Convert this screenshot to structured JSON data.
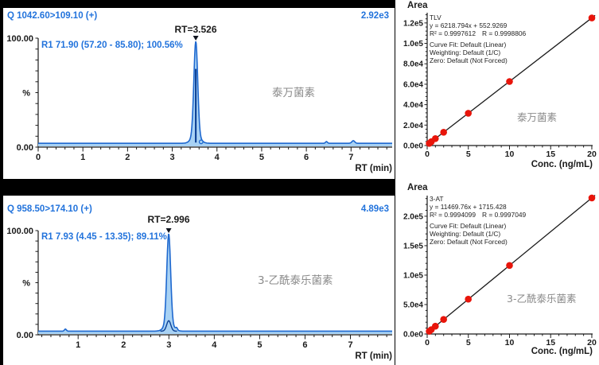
{
  "colors": {
    "header_blue": "#2273dc",
    "trace": "#1e68cf",
    "trace_fill": "#a8d2f4",
    "trace_dark": "#0b3f94",
    "marker": "#10141f",
    "axis": "#1a1a1a",
    "axis_text": "#1a1a1a",
    "ann_text": "#1f1f1f",
    "gray_label": "#8b8b8b",
    "point_red": "#e8150b",
    "fit_line": "#1a1a1a"
  },
  "chart_data": [
    {
      "type": "area",
      "role": "chromatogram",
      "title_transition": "Q 1042.60>109.10 (+)",
      "intensity_scale": "2.92e3",
      "peak": {
        "rt": 3.526,
        "label": "RT=3.526",
        "height_pct": 100
      },
      "integration_label": "R1 71.90 (57.20 - 85.80); 100.56%",
      "compound": "泰万菌素",
      "xlabel": "RT (min)",
      "ylabel": "%",
      "ylim": [
        0,
        100
      ],
      "y_tick_labels": [
        "100.00",
        "0.00"
      ],
      "xlim": [
        0,
        7.92
      ],
      "x_ticks": [
        0,
        1,
        2,
        3,
        4,
        5,
        6,
        7
      ],
      "baseline_pct": 3.5,
      "minor_bumps": [
        {
          "rt": 6.45,
          "pct": 1.6
        },
        {
          "rt": 7.05,
          "pct": 2.4
        }
      ],
      "post_peak_circle": {
        "rt": 3.645,
        "r": 2.3
      },
      "sub_peak_pct": 0,
      "inner_line_pct": 73
    },
    {
      "type": "area",
      "role": "chromatogram",
      "title_transition": "Q 958.50>174.10 (+)",
      "intensity_scale": "4.89e3",
      "peak": {
        "rt": 2.996,
        "label": "RT=2.996",
        "height_pct": 100
      },
      "integration_label": "R1 7.93 (4.45 - 13.35); 89.11%",
      "compound": "3-乙酰泰乐菌素",
      "xlabel": "RT (min)",
      "ylabel": "%",
      "ylim": [
        0,
        100
      ],
      "y_tick_labels": [
        "100.00",
        "0.00"
      ],
      "xlim": [
        0.12,
        7.92
      ],
      "x_ticks": [
        1,
        2,
        3,
        4,
        5,
        6,
        7
      ],
      "baseline_pct": 3.5,
      "minor_bumps": [
        {
          "rt": 0.72,
          "pct": 2
        },
        {
          "rt": 3.17,
          "pct": 2.2
        }
      ],
      "post_peak_circle": null,
      "sub_peak_pct": 10,
      "inner_line_pct": 0
    },
    {
      "type": "scatter",
      "role": "calibration",
      "ylabel": "Area",
      "xlabel": "Conc. (ng/mL)",
      "analyte": "TLV",
      "equation": "y = 6218.794x + 552.9269",
      "r_squared": "R² = 0.9997612",
      "r": "R = 0.9998806",
      "curve_fit": "Curve Fit: Default (Linear)",
      "weighting": "Weighting: Default (1/C)",
      "zero": "Zero: Default (Not Forced)",
      "compound": "泰万菌素",
      "slope": 6218.794,
      "intercept": 552.9269,
      "x": [
        0.25,
        0.5,
        1,
        2,
        5,
        10,
        20
      ],
      "y": [
        2100,
        3700,
        6800,
        13000,
        31600,
        62700,
        124900
      ],
      "x_ticks": [
        0,
        5,
        10,
        15,
        20
      ],
      "y_ticks": [
        {
          "value": 0,
          "label": "0.0e0"
        },
        {
          "value": 20000,
          "label": "2.0e4"
        },
        {
          "value": 40000,
          "label": "4.0e4"
        },
        {
          "value": 60000,
          "label": "6.0e4"
        },
        {
          "value": 80000,
          "label": "8.0e4"
        },
        {
          "value": 100000,
          "label": "1.0e5"
        },
        {
          "value": 120000,
          "label": "1.2e5"
        }
      ],
      "ylim": [
        0,
        130000
      ],
      "xlim": [
        0,
        20.1
      ],
      "y_minor_step": 4000
    },
    {
      "type": "scatter",
      "role": "calibration",
      "ylabel": "Area",
      "xlabel": "Conc. (ng/mL)",
      "analyte": "3-AT",
      "equation": "y = 11469.76x + 1715.428",
      "r_squared": "R² = 0.9994099",
      "r": "R = 0.9997049",
      "curve_fit": "Curve Fit: Default (Linear)",
      "weighting": "Weighting: Default (1/C)",
      "zero": "Zero: Default (Not Forced)",
      "compound": "3-乙酰泰乐菌素",
      "slope": 11469.76,
      "intercept": 1715.428,
      "x": [
        0.25,
        0.5,
        1,
        2,
        5,
        10,
        20
      ],
      "y": [
        4600,
        7450,
        13200,
        24700,
        59100,
        116400,
        231100
      ],
      "x_ticks": [
        0,
        5,
        10,
        15,
        20
      ],
      "y_ticks": [
        {
          "value": 0,
          "label": "0.0e0"
        },
        {
          "value": 50000,
          "label": "5.0e4"
        },
        {
          "value": 100000,
          "label": "1.0e5"
        },
        {
          "value": 150000,
          "label": "1.5e5"
        },
        {
          "value": 200000,
          "label": "2.0e5"
        }
      ],
      "ylim": [
        0,
        235000
      ],
      "xlim": [
        0,
        20.1
      ],
      "y_minor_step": 10000
    }
  ]
}
